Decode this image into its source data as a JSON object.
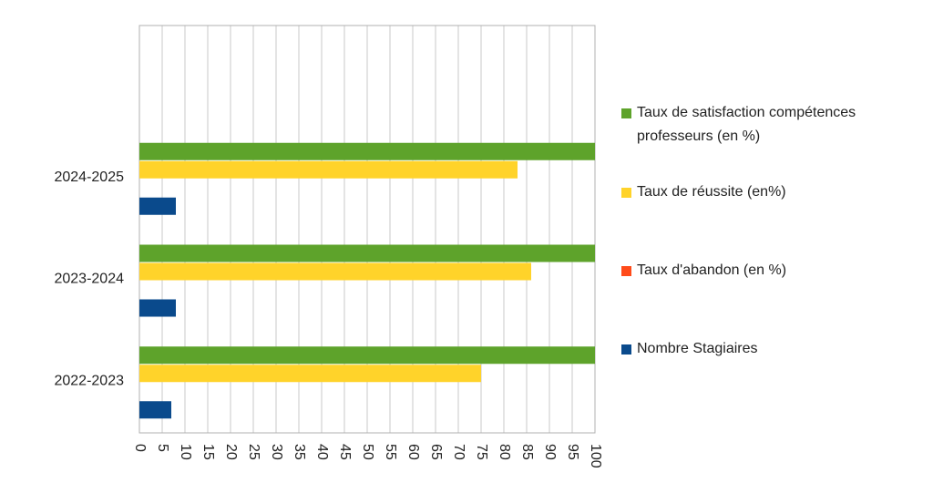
{
  "chart_data": {
    "type": "hbar",
    "categories": [
      "2022-2023",
      "2023-2024",
      "2024-2025",
      null
    ],
    "series": [
      {
        "name": "Taux de satisfaction compétences professeurs (en %)",
        "color": "#5ea32b",
        "values": [
          100,
          100,
          100,
          null
        ]
      },
      {
        "name": "Taux de réussite (en%)",
        "color": "#ffd32a",
        "values": [
          75,
          86,
          83,
          null
        ]
      },
      {
        "name": "Taux d'abandon (en %)",
        "color": "#ff4b1a",
        "values": [
          0,
          0,
          0,
          null
        ]
      },
      {
        "name": "Nombre Stagiaires",
        "color": "#0a4a8c",
        "values": [
          7,
          8,
          8,
          null
        ]
      }
    ],
    "xlim": [
      0,
      100
    ],
    "xticks": [
      0,
      5,
      10,
      15,
      20,
      25,
      30,
      35,
      40,
      45,
      50,
      55,
      60,
      65,
      70,
      75,
      80,
      85,
      90,
      95,
      100
    ],
    "grid": true,
    "legend": "right"
  }
}
